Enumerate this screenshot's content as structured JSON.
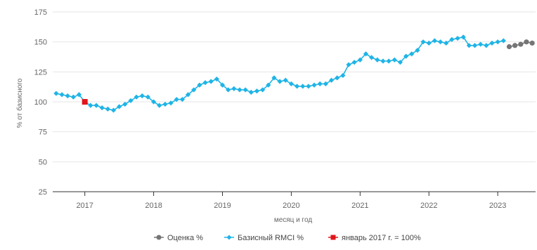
{
  "chart_data": {
    "type": "line",
    "title": "",
    "xlabel": "месяц и год",
    "ylabel": "% от базисного",
    "ylim": [
      25,
      175
    ],
    "yticks": [
      25,
      50,
      75,
      100,
      125,
      150,
      175
    ],
    "xticks": [
      "2017",
      "2018",
      "2019",
      "2020",
      "2021",
      "2022",
      "2023"
    ],
    "xlim": [
      "2016-08",
      "2023-07"
    ],
    "grid": "horizontal",
    "legend_position": "bottom-center",
    "series": [
      {
        "name": "Оценка %",
        "color": "#757575",
        "marker": "circle",
        "x": [
          "2023-03",
          "2023-04",
          "2023-05",
          "2023-06",
          "2023-07"
        ],
        "y": [
          146,
          147,
          148,
          150,
          149
        ]
      },
      {
        "name": "Базисный RMCI %",
        "color": "#1FB4E6",
        "marker": "diamond",
        "x": [
          "2016-08",
          "2016-09",
          "2016-10",
          "2016-11",
          "2016-12",
          "2017-01",
          "2017-02",
          "2017-03",
          "2017-04",
          "2017-05",
          "2017-06",
          "2017-07",
          "2017-08",
          "2017-09",
          "2017-10",
          "2017-11",
          "2017-12",
          "2018-01",
          "2018-02",
          "2018-03",
          "2018-04",
          "2018-05",
          "2018-06",
          "2018-07",
          "2018-08",
          "2018-09",
          "2018-10",
          "2018-11",
          "2018-12",
          "2019-01",
          "2019-02",
          "2019-03",
          "2019-04",
          "2019-05",
          "2019-06",
          "2019-07",
          "2019-08",
          "2019-09",
          "2019-10",
          "2019-11",
          "2019-12",
          "2020-01",
          "2020-02",
          "2020-03",
          "2020-04",
          "2020-05",
          "2020-06",
          "2020-07",
          "2020-08",
          "2020-09",
          "2020-10",
          "2020-11",
          "2020-12",
          "2021-01",
          "2021-02",
          "2021-03",
          "2021-04",
          "2021-05",
          "2021-06",
          "2021-07",
          "2021-08",
          "2021-09",
          "2021-10",
          "2021-11",
          "2021-12",
          "2022-01",
          "2022-02",
          "2022-03",
          "2022-04",
          "2022-05",
          "2022-06",
          "2022-07",
          "2022-08",
          "2022-09",
          "2022-10",
          "2022-11",
          "2022-12",
          "2023-01",
          "2023-02"
        ],
        "y": [
          107,
          106,
          105,
          104,
          106,
          100,
          97,
          97,
          95,
          94,
          93,
          96,
          98,
          101,
          104,
          105,
          104,
          100,
          97,
          98,
          99,
          102,
          102,
          106,
          110,
          114,
          116,
          117,
          119,
          114,
          110,
          111,
          110,
          110,
          108,
          109,
          110,
          114,
          120,
          117,
          118,
          115,
          113,
          113,
          113,
          114,
          115,
          115,
          118,
          120,
          122,
          131,
          133,
          135,
          140,
          137,
          135,
          134,
          134,
          135,
          133,
          138,
          140,
          143,
          150,
          149,
          151,
          150,
          149,
          152,
          153,
          154,
          147,
          147,
          148,
          147,
          149,
          150,
          151
        ]
      },
      {
        "name": "январь 2017 г. = 100%",
        "color": "#E0161B",
        "marker": "square",
        "x": [
          "2017-01"
        ],
        "y": [
          100
        ]
      }
    ]
  }
}
